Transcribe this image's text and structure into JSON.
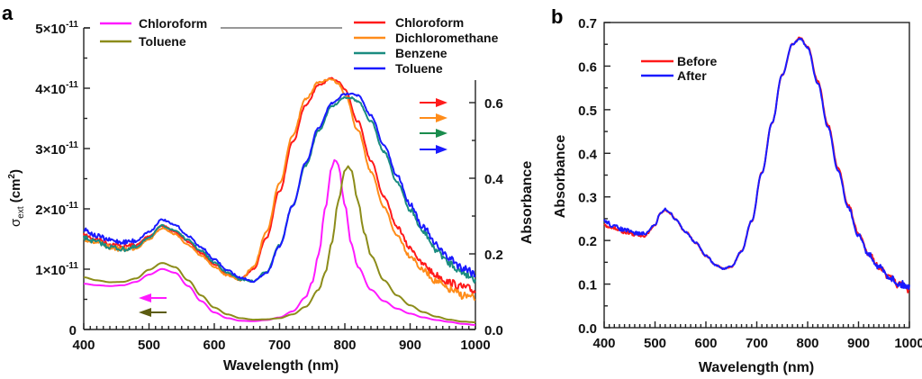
{
  "chart_data": [
    {
      "panel": "a",
      "type": "line",
      "xlabel": "Wavelength (nm)",
      "ylabel_left": "σext (cm²)",
      "ylabel_right": "Absorbance",
      "xlim": [
        400,
        1000
      ],
      "ylim_left": [
        0,
        5e-11
      ],
      "ylim_right": [
        0,
        0.65
      ],
      "x_ticks": [
        "400",
        "500",
        "600",
        "700",
        "800",
        "900",
        "1000"
      ],
      "y_left_ticks": [
        {
          "value": 0,
          "label": "0",
          "sup": ""
        },
        {
          "value": 1e-11,
          "label": "1×10",
          "sup": "-11"
        },
        {
          "value": 2e-11,
          "label": "2×10",
          "sup": "-11"
        },
        {
          "value": 3e-11,
          "label": "3×10",
          "sup": "-11"
        },
        {
          "value": 4e-11,
          "label": "4×10",
          "sup": "-11"
        },
        {
          "value": 5e-11,
          "label": "5×10",
          "sup": "-11"
        }
      ],
      "y_right_ticks": [
        "0.0",
        "0.2",
        "0.4",
        "0.6"
      ],
      "grid": false,
      "legends": [
        {
          "placement": "top-left",
          "axis": "right",
          "entries": [
            "Chloroform",
            "Toluene"
          ]
        },
        {
          "placement": "top-right",
          "axis": "left",
          "entries": [
            "Chloroform",
            "Dichloromethane",
            "Benzene",
            "Toluene"
          ]
        }
      ],
      "series": [
        {
          "name": "Chloroform",
          "axis": "left",
          "color": "#ff1a1a",
          "noisy": true,
          "x": [
            400,
            420,
            440,
            460,
            480,
            500,
            520,
            540,
            560,
            580,
            600,
            620,
            640,
            660,
            680,
            700,
            720,
            740,
            760,
            780,
            790,
            800,
            820,
            840,
            860,
            880,
            900,
            920,
            940,
            960,
            980,
            1000
          ],
          "y": [
            1.56e-11,
            1.5e-11,
            1.42e-11,
            1.38e-11,
            1.4e-11,
            1.55e-11,
            1.72e-11,
            1.62e-11,
            1.45e-11,
            1.27e-11,
            1.08e-11,
            9.2e-12,
            8.4e-12,
            1e-11,
            1.52e-11,
            2.3e-11,
            3.1e-11,
            3.72e-11,
            4.05e-11,
            4.16e-11,
            4.12e-11,
            3.98e-11,
            3.45e-11,
            2.8e-11,
            2.2e-11,
            1.7e-11,
            1.35e-11,
            1.08e-11,
            9e-12,
            7.8e-12,
            7e-12,
            6.4e-12
          ]
        },
        {
          "name": "Dichloromethane",
          "axis": "left",
          "color": "#ff8c1a",
          "noisy": true,
          "x": [
            400,
            420,
            440,
            460,
            480,
            500,
            520,
            540,
            560,
            580,
            600,
            620,
            640,
            660,
            680,
            700,
            720,
            740,
            760,
            780,
            790,
            800,
            820,
            840,
            860,
            880,
            900,
            920,
            940,
            960,
            980,
            1000
          ],
          "y": [
            1.5e-11,
            1.44e-11,
            1.36e-11,
            1.33e-11,
            1.35e-11,
            1.5e-11,
            1.68e-11,
            1.58e-11,
            1.4e-11,
            1.22e-11,
            1.04e-11,
            9e-12,
            8.2e-12,
            1.04e-11,
            1.62e-11,
            2.42e-11,
            3.22e-11,
            3.82e-11,
            4.1e-11,
            4.15e-11,
            4.08e-11,
            3.9e-11,
            3.3e-11,
            2.62e-11,
            2.02e-11,
            1.56e-11,
            1.22e-11,
            9.8e-12,
            8e-12,
            6.6e-12,
            5.7e-12,
            5.1e-12
          ]
        },
        {
          "name": "Benzene",
          "axis": "left",
          "color": "#1a8c80",
          "noisy": true,
          "x": [
            400,
            420,
            440,
            460,
            480,
            500,
            520,
            540,
            560,
            580,
            600,
            620,
            640,
            660,
            680,
            700,
            720,
            740,
            760,
            780,
            800,
            810,
            820,
            840,
            860,
            880,
            900,
            920,
            940,
            960,
            980,
            1000
          ],
          "y": [
            1.52e-11,
            1.45e-11,
            1.37e-11,
            1.33e-11,
            1.36e-11,
            1.53e-11,
            1.72e-11,
            1.64e-11,
            1.48e-11,
            1.3e-11,
            1.11e-11,
            9.4e-12,
            8.3e-12,
            8e-12,
            9.6e-12,
            1.4e-11,
            2.05e-11,
            2.72e-11,
            3.3e-11,
            3.7e-11,
            3.85e-11,
            3.84e-11,
            3.78e-11,
            3.45e-11,
            2.95e-11,
            2.45e-11,
            1.98e-11,
            1.62e-11,
            1.32e-11,
            1.1e-11,
            9.5e-12,
            8.5e-12
          ]
        },
        {
          "name": "Toluene",
          "axis": "left",
          "color": "#1a1aff",
          "noisy": true,
          "x": [
            400,
            420,
            440,
            460,
            480,
            500,
            520,
            540,
            560,
            580,
            600,
            620,
            640,
            660,
            680,
            700,
            720,
            740,
            760,
            780,
            800,
            810,
            820,
            840,
            860,
            880,
            900,
            920,
            940,
            960,
            980,
            1000
          ],
          "y": [
            1.66e-11,
            1.55e-11,
            1.48e-11,
            1.45e-11,
            1.47e-11,
            1.62e-11,
            1.82e-11,
            1.73e-11,
            1.55e-11,
            1.36e-11,
            1.16e-11,
            9.8e-12,
            8.6e-12,
            8e-12,
            9.4e-12,
            1.38e-11,
            2.05e-11,
            2.76e-11,
            3.35e-11,
            3.75e-11,
            3.9e-11,
            3.92e-11,
            3.88e-11,
            3.55e-11,
            3.05e-11,
            2.55e-11,
            2.08e-11,
            1.7e-11,
            1.4e-11,
            1.18e-11,
            1.03e-11,
            9.4e-12
          ]
        },
        {
          "name": "Chloroform (absorbance)",
          "axis": "right",
          "color": "#ff1aff",
          "noisy": false,
          "x": [
            400,
            420,
            440,
            460,
            480,
            500,
            520,
            540,
            560,
            580,
            600,
            620,
            640,
            660,
            680,
            700,
            720,
            740,
            750,
            760,
            770,
            780,
            785,
            790,
            800,
            810,
            820,
            840,
            860,
            880,
            900,
            920,
            940,
            960,
            980,
            1000
          ],
          "y": [
            0.121,
            0.117,
            0.115,
            0.117,
            0.126,
            0.145,
            0.16,
            0.15,
            0.115,
            0.075,
            0.045,
            0.03,
            0.023,
            0.022,
            0.025,
            0.032,
            0.048,
            0.085,
            0.125,
            0.2,
            0.32,
            0.43,
            0.45,
            0.435,
            0.33,
            0.225,
            0.165,
            0.105,
            0.075,
            0.055,
            0.042,
            0.032,
            0.025,
            0.02,
            0.015,
            0.012
          ]
        },
        {
          "name": "Toluene (absorbance)",
          "axis": "right",
          "color": "#8c8c1a",
          "noisy": false,
          "x": [
            400,
            420,
            440,
            460,
            480,
            500,
            520,
            540,
            560,
            580,
            600,
            620,
            640,
            660,
            680,
            700,
            720,
            740,
            760,
            770,
            780,
            790,
            800,
            805,
            810,
            820,
            830,
            840,
            860,
            880,
            900,
            920,
            940,
            960,
            980,
            1000
          ],
          "y": [
            0.138,
            0.13,
            0.125,
            0.126,
            0.135,
            0.158,
            0.176,
            0.165,
            0.13,
            0.09,
            0.058,
            0.04,
            0.03,
            0.026,
            0.027,
            0.03,
            0.04,
            0.06,
            0.105,
            0.15,
            0.23,
            0.34,
            0.42,
            0.432,
            0.42,
            0.34,
            0.255,
            0.195,
            0.13,
            0.09,
            0.064,
            0.046,
            0.034,
            0.026,
            0.021,
            0.019
          ]
        }
      ],
      "annotations": [
        {
          "type": "arrow",
          "direction": "right",
          "color": "#ff1a1a",
          "meaning": "Chloroform → right axis"
        },
        {
          "type": "arrow",
          "direction": "right",
          "color": "#ff8c1a",
          "meaning": "Dichloromethane → right axis"
        },
        {
          "type": "arrow",
          "direction": "right",
          "color": "#1a8c4d",
          "meaning": "Benzene → right axis"
        },
        {
          "type": "arrow",
          "direction": "right",
          "color": "#1a1aff",
          "meaning": "Toluene → right axis"
        },
        {
          "type": "arrow",
          "direction": "left",
          "color": "#ff1aff",
          "meaning": "Chloroform → left axis"
        },
        {
          "type": "arrow",
          "direction": "left",
          "color": "#5c5c10",
          "meaning": "Toluene → left axis"
        }
      ]
    },
    {
      "panel": "b",
      "type": "line",
      "xlabel": "Wavelength (nm)",
      "ylabel": "Absorbance",
      "xlim": [
        400,
        1000
      ],
      "ylim": [
        0,
        0.7
      ],
      "x_ticks": [
        "400",
        "500",
        "600",
        "700",
        "800",
        "900",
        "1000"
      ],
      "y_ticks": [
        "0.0",
        "0.1",
        "0.2",
        "0.3",
        "0.4",
        "0.5",
        "0.6",
        "0.7"
      ],
      "grid": false,
      "legend": {
        "placement": "top-left",
        "entries": [
          "Before",
          "After"
        ]
      },
      "series": [
        {
          "name": "Before",
          "color": "#ff1a1a",
          "noisy": true,
          "x": [
            400,
            420,
            440,
            460,
            480,
            500,
            510,
            520,
            530,
            540,
            560,
            580,
            600,
            620,
            635,
            650,
            670,
            690,
            710,
            730,
            750,
            770,
            785,
            800,
            820,
            840,
            860,
            880,
            900,
            920,
            940,
            960,
            980,
            1000
          ],
          "y": [
            0.235,
            0.228,
            0.22,
            0.214,
            0.212,
            0.235,
            0.262,
            0.27,
            0.262,
            0.248,
            0.22,
            0.195,
            0.165,
            0.143,
            0.135,
            0.14,
            0.175,
            0.245,
            0.355,
            0.47,
            0.58,
            0.65,
            0.665,
            0.645,
            0.565,
            0.465,
            0.365,
            0.28,
            0.215,
            0.17,
            0.14,
            0.115,
            0.098,
            0.088
          ]
        },
        {
          "name": "After",
          "color": "#1a1aff",
          "noisy": true,
          "x": [
            400,
            420,
            440,
            460,
            480,
            500,
            510,
            520,
            530,
            540,
            560,
            580,
            600,
            620,
            635,
            650,
            670,
            690,
            710,
            730,
            750,
            770,
            785,
            800,
            820,
            840,
            860,
            880,
            900,
            920,
            940,
            960,
            980,
            1000
          ],
          "y": [
            0.245,
            0.232,
            0.224,
            0.217,
            0.215,
            0.236,
            0.262,
            0.272,
            0.263,
            0.248,
            0.22,
            0.195,
            0.165,
            0.143,
            0.135,
            0.14,
            0.175,
            0.245,
            0.355,
            0.47,
            0.58,
            0.65,
            0.663,
            0.642,
            0.56,
            0.46,
            0.36,
            0.275,
            0.212,
            0.168,
            0.14,
            0.117,
            0.1,
            0.095
          ]
        }
      ]
    }
  ],
  "labels": {
    "panel_a": "a",
    "panel_b": "b",
    "a_xlabel": "Wavelength (nm)",
    "a_ylabel_sigma": "σ",
    "a_ylabel_sub": "ext",
    "a_ylabel_unit": " (cm",
    "a_ylabel_sup": "2",
    "a_ylabel_close": ")",
    "a_ylabel_right": "Absorbance",
    "b_xlabel": "Wavelength (nm)",
    "b_ylabel": "Absorbance"
  }
}
